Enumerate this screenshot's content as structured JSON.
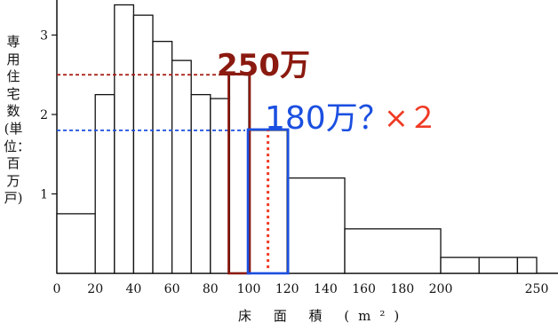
{
  "chart_data": {
    "type": "bar",
    "bins": [
      {
        "x0": 0,
        "x1": 20,
        "value": 0.75
      },
      {
        "x0": 20,
        "x1": 30,
        "value": 2.25
      },
      {
        "x0": 30,
        "x1": 40,
        "value": 3.38
      },
      {
        "x0": 40,
        "x1": 50,
        "value": 3.25
      },
      {
        "x0": 50,
        "x1": 60,
        "value": 2.92
      },
      {
        "x0": 60,
        "x1": 70,
        "value": 2.68
      },
      {
        "x0": 70,
        "x1": 80,
        "value": 2.25
      },
      {
        "x0": 80,
        "x1": 90,
        "value": 2.2
      },
      {
        "x0": 90,
        "x1": 100,
        "value": 2.5
      },
      {
        "x0": 100,
        "x1": 120,
        "value": 1.8
      },
      {
        "x0": 120,
        "x1": 150,
        "value": 1.2
      },
      {
        "x0": 150,
        "x1": 200,
        "value": 0.56
      },
      {
        "x0": 200,
        "x1": 220,
        "value": 0.2
      },
      {
        "x0": 220,
        "x1": 240,
        "value": 0.2
      },
      {
        "x0": 240,
        "x1": 250,
        "value": 0.2
      }
    ],
    "xticks": [
      0,
      20,
      40,
      60,
      80,
      100,
      120,
      140,
      160,
      180,
      200,
      250
    ],
    "yticks": [
      1,
      2,
      3
    ],
    "xlim": [
      0,
      260
    ],
    "ylim": [
      0,
      3.5
    ],
    "xlabel": "床 面 積 (m²)",
    "ylabel": "専用住宅数(単位：百万戸)",
    "highlights": [
      {
        "x0": 90,
        "x1": 100,
        "value": 2.5,
        "color": "#8b1a10"
      },
      {
        "x0": 100,
        "x1": 120,
        "value": 1.8,
        "color": "#1b4fe0"
      }
    ],
    "reference_lines": [
      {
        "y": 2.5,
        "color": "#a51b10"
      },
      {
        "y": 1.8,
        "color": "#1b4fe0"
      }
    ],
    "vertical_marker": {
      "x": 110,
      "color": "#f03a24"
    },
    "annotations": {
      "label_250": "250万",
      "label_180": "180万？",
      "label_x2": "×２"
    }
  }
}
